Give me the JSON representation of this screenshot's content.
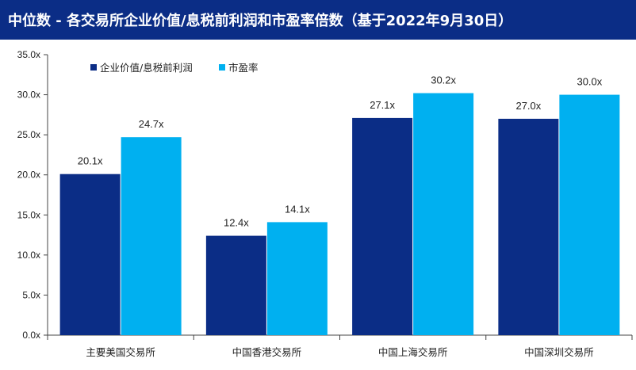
{
  "header": {
    "title": "中位数 - 各交易所企业价值/息税前利润和市盈率倍数（基于2022年9月30日）"
  },
  "colors": {
    "title_bg": "#0b2d86",
    "series_1": "#0b2d86",
    "series_2": "#00b0f0"
  },
  "chart_data": {
    "type": "bar",
    "title": "中位数 - 各交易所企业价值/息税前利润和市盈率倍数（基于2022年9月30日）",
    "categories": [
      "主要美国交易所",
      "中国香港交易所",
      "中国上海交易所",
      "中国深圳交易所"
    ],
    "series": [
      {
        "name": "企业价值/息税前利润",
        "values": [
          20.1,
          12.4,
          27.1,
          27.0
        ],
        "labels": [
          "20.1x",
          "12.4x",
          "27.1x",
          "27.0x"
        ]
      },
      {
        "name": "市盈率",
        "values": [
          24.7,
          14.1,
          30.2,
          30.0
        ],
        "labels": [
          "24.7x",
          "14.1x",
          "30.2x",
          "30.0x"
        ]
      }
    ],
    "ylim": [
      0,
      35
    ],
    "yticks": [
      0,
      5,
      10,
      15,
      20,
      25,
      30,
      35
    ],
    "ytick_labels": [
      "0.0x",
      "5.0x",
      "10.0x",
      "15.0x",
      "20.0x",
      "25.0x",
      "30.0x",
      "35.0x"
    ],
    "xlabel": "",
    "ylabel": "",
    "grid": false,
    "legend_position": "top-left"
  }
}
